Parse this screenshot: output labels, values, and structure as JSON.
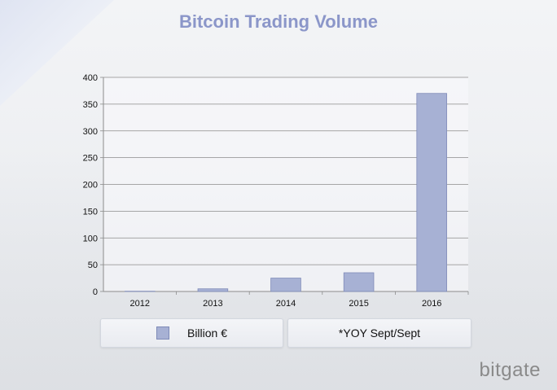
{
  "colors": {
    "bar": "#a7b1d4",
    "bar_stroke": "#7f8bb8",
    "title": "#8b96c9",
    "grid": "#8c8c8c"
  },
  "chart_data": {
    "type": "bar",
    "title": "Bitcoin Trading Volume",
    "categories": [
      "2012",
      "2013",
      "2014",
      "2015",
      "2016"
    ],
    "series": [
      {
        "name": "Billion €",
        "values": [
          0.5,
          5,
          25,
          35,
          370
        ]
      }
    ],
    "ylim": [
      0,
      400
    ],
    "yticks": [
      0,
      50,
      100,
      150,
      200,
      250,
      300,
      350,
      400
    ],
    "grid": true,
    "legend": "bottom",
    "note": "*YOY Sept/Sept"
  },
  "logo": {
    "text": "bitgate"
  }
}
